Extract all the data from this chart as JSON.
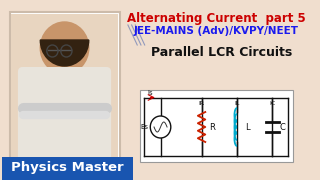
{
  "bg_color": "#f0dece",
  "title_line1": "Alternating Current  part 5",
  "title_line2": "JEE-MAINS (Adv)/KVPY/NEET",
  "title_line3": "Parallel LCR Circuits",
  "title1_color": "#cc0000",
  "title2_color": "#1a1aee",
  "title3_color": "#111111",
  "bottom_bar_color": "#1955b0",
  "bottom_bar_text": "Physics Master",
  "bottom_text_color": "#ffffff",
  "circuit_bg": "#ffffff",
  "wire_color": "#111111",
  "resistor_color": "#cc2200",
  "inductor_color": "#00aacc",
  "capacitor_color": "#111111",
  "label_Is": "Is",
  "label_IR": "IR",
  "label_IL": "IL",
  "label_IC": "IC",
  "label_Es": "Es",
  "label_R": "R",
  "label_L": "L",
  "label_C": "C",
  "photo_border": "#ccbbaa",
  "photo_bg": "#e8d5c0",
  "person_skin": "#c8956a",
  "person_shirt": "#e8e4dc",
  "person_hair": "#332211"
}
